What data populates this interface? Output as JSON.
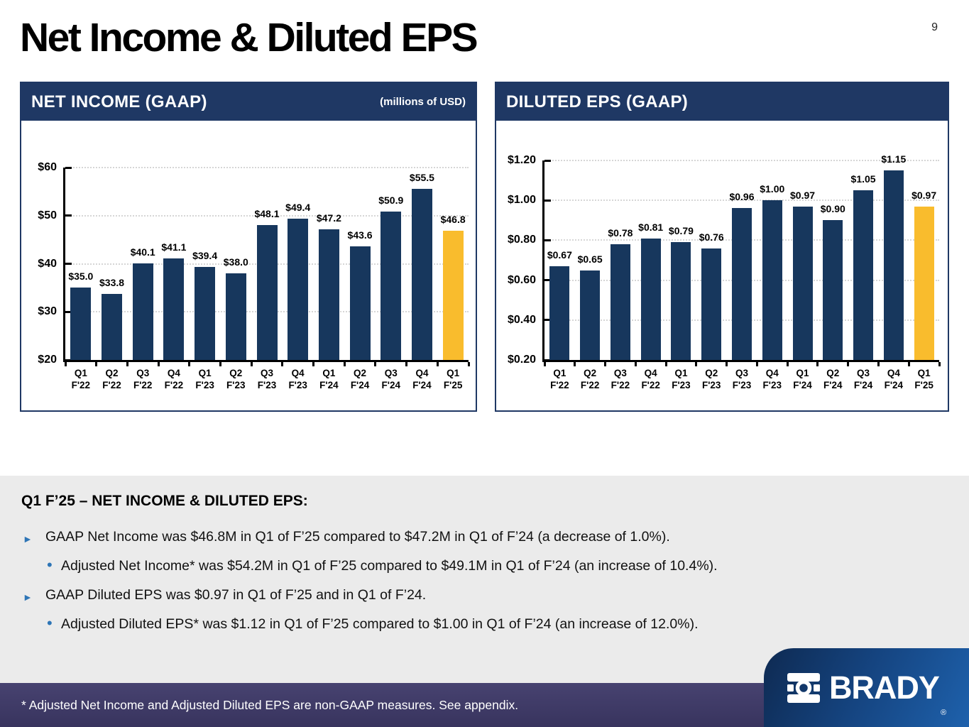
{
  "page": {
    "number": "9",
    "title": "Net Income & Diluted EPS"
  },
  "chart_data": [
    {
      "type": "bar",
      "title": "NET INCOME (GAAP)",
      "subtitle": "(millions of USD)",
      "categories": [
        [
          "Q1",
          "F'22"
        ],
        [
          "Q2",
          "F'22"
        ],
        [
          "Q3",
          "F'22"
        ],
        [
          "Q4",
          "F'22"
        ],
        [
          "Q1",
          "F'23"
        ],
        [
          "Q2",
          "F'23"
        ],
        [
          "Q3",
          "F'23"
        ],
        [
          "Q4",
          "F'23"
        ],
        [
          "Q1",
          "F'24"
        ],
        [
          "Q2",
          "F'24"
        ],
        [
          "Q3",
          "F'24"
        ],
        [
          "Q4",
          "F'24"
        ],
        [
          "Q1",
          "F'25"
        ]
      ],
      "values": [
        35.0,
        33.8,
        40.1,
        41.1,
        39.4,
        38.0,
        48.1,
        49.4,
        47.2,
        43.6,
        50.9,
        55.5,
        46.8
      ],
      "labels": [
        "$35.0",
        "$33.8",
        "$40.1",
        "$41.1",
        "$39.4",
        "$38.0",
        "$48.1",
        "$49.4",
        "$47.2",
        "$43.6",
        "$50.9",
        "$55.5",
        "$46.8"
      ],
      "ylim": [
        20,
        60
      ],
      "ticks": [
        {
          "value": 20,
          "label": "$20"
        },
        {
          "value": 30,
          "label": "$30"
        },
        {
          "value": 40,
          "label": "$40"
        },
        {
          "value": 50,
          "label": "$50"
        },
        {
          "value": 60,
          "label": "$60"
        }
      ],
      "highlight_index": 12,
      "grid": "horizontal-dotted",
      "legend": "none"
    },
    {
      "type": "bar",
      "title": "DILUTED EPS (GAAP)",
      "subtitle": "",
      "categories": [
        [
          "Q1",
          "F'22"
        ],
        [
          "Q2",
          "F'22"
        ],
        [
          "Q3",
          "F'22"
        ],
        [
          "Q4",
          "F'22"
        ],
        [
          "Q1",
          "F'23"
        ],
        [
          "Q2",
          "F'23"
        ],
        [
          "Q3",
          "F'23"
        ],
        [
          "Q4",
          "F'23"
        ],
        [
          "Q1",
          "F'24"
        ],
        [
          "Q2",
          "F'24"
        ],
        [
          "Q3",
          "F'24"
        ],
        [
          "Q4",
          "F'24"
        ],
        [
          "Q1",
          "F'25"
        ]
      ],
      "values": [
        0.67,
        0.65,
        0.78,
        0.81,
        0.79,
        0.76,
        0.96,
        1.0,
        0.97,
        0.9,
        1.05,
        1.15,
        0.97
      ],
      "labels": [
        "$0.67",
        "$0.65",
        "$0.78",
        "$0.81",
        "$0.79",
        "$0.76",
        "$0.96",
        "$1.00",
        "$0.97",
        "$0.90",
        "$1.05",
        "$1.15",
        "$0.97"
      ],
      "ylim": [
        0.2,
        1.2
      ],
      "ticks": [
        {
          "value": 0.2,
          "label": "$0.20"
        },
        {
          "value": 0.4,
          "label": "$0.40"
        },
        {
          "value": 0.6,
          "label": "$0.60"
        },
        {
          "value": 0.8,
          "label": "$0.80"
        },
        {
          "value": 1.0,
          "label": "$1.00"
        },
        {
          "value": 1.2,
          "label": "$1.20"
        }
      ],
      "highlight_index": 12,
      "grid": "horizontal-dotted",
      "legend": "none"
    }
  ],
  "commentary": {
    "heading": "Q1 F’25 – NET INCOME & DILUTED EPS:",
    "bullets": [
      {
        "level": 1,
        "text": "GAAP Net Income was $46.8M in Q1 of F’25 compared to $47.2M in Q1 of F’24 (a decrease of 1.0%)."
      },
      {
        "level": 2,
        "text": "Adjusted Net Income* was $54.2M in Q1 of F’25 compared to $49.1M in Q1 of F’24 (an increase of 10.4%)."
      },
      {
        "level": 1,
        "text": "GAAP Diluted EPS was $0.97 in Q1 of F’25 and in Q1 of F’24."
      },
      {
        "level": 2,
        "text": "Adjusted Diluted EPS* was $1.12 in Q1 of F’25 compared to $1.00 in Q1 of F’24 (an increase of 12.0%)."
      }
    ]
  },
  "footnote": {
    "text": "* Adjusted Net Income and Adjusted Diluted EPS are non-GAAP measures.  See appendix."
  },
  "logo": {
    "text": "BRADY",
    "registered": "®"
  },
  "colors": {
    "bar_navy": "#17375D",
    "bar_gold": "#F9BC2D",
    "header_navy": "#1F3864",
    "footer_purple": "#3D3A6E",
    "bullet_accent": "#2E75B6",
    "grid_gray": "#D6D6D6"
  }
}
